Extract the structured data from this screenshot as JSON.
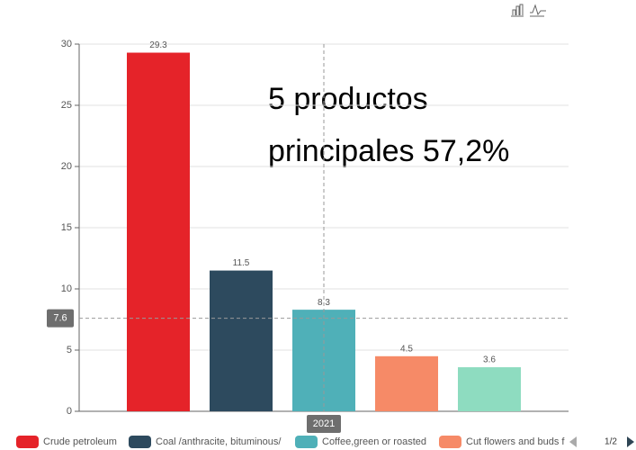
{
  "chart_data": {
    "type": "bar",
    "categories": [
      "2021"
    ],
    "series": [
      {
        "name": "Crude petroleum",
        "color": "#e52329",
        "values": [
          29.3
        ]
      },
      {
        "name": "Coal /anthracite, bituminous/",
        "color": "#2d4a5e",
        "values": [
          11.5
        ]
      },
      {
        "name": "Coffee,green or roasted",
        "color": "#4fb0b8",
        "values": [
          8.3
        ]
      },
      {
        "name": "Cut flowers and buds for",
        "color": "#f68a67",
        "values": [
          4.5
        ]
      },
      {
        "name": "",
        "color": "#8edcc0",
        "values": [
          3.6
        ]
      }
    ],
    "ylim": [
      0,
      30
    ],
    "yticks": [
      0,
      5,
      10,
      15,
      20,
      25,
      30
    ],
    "grid": true,
    "annotation": [
      "5 productos",
      "principales 57,2%"
    ],
    "axis_pointer": {
      "y": 7.6
    },
    "legend_page": "1/2"
  }
}
